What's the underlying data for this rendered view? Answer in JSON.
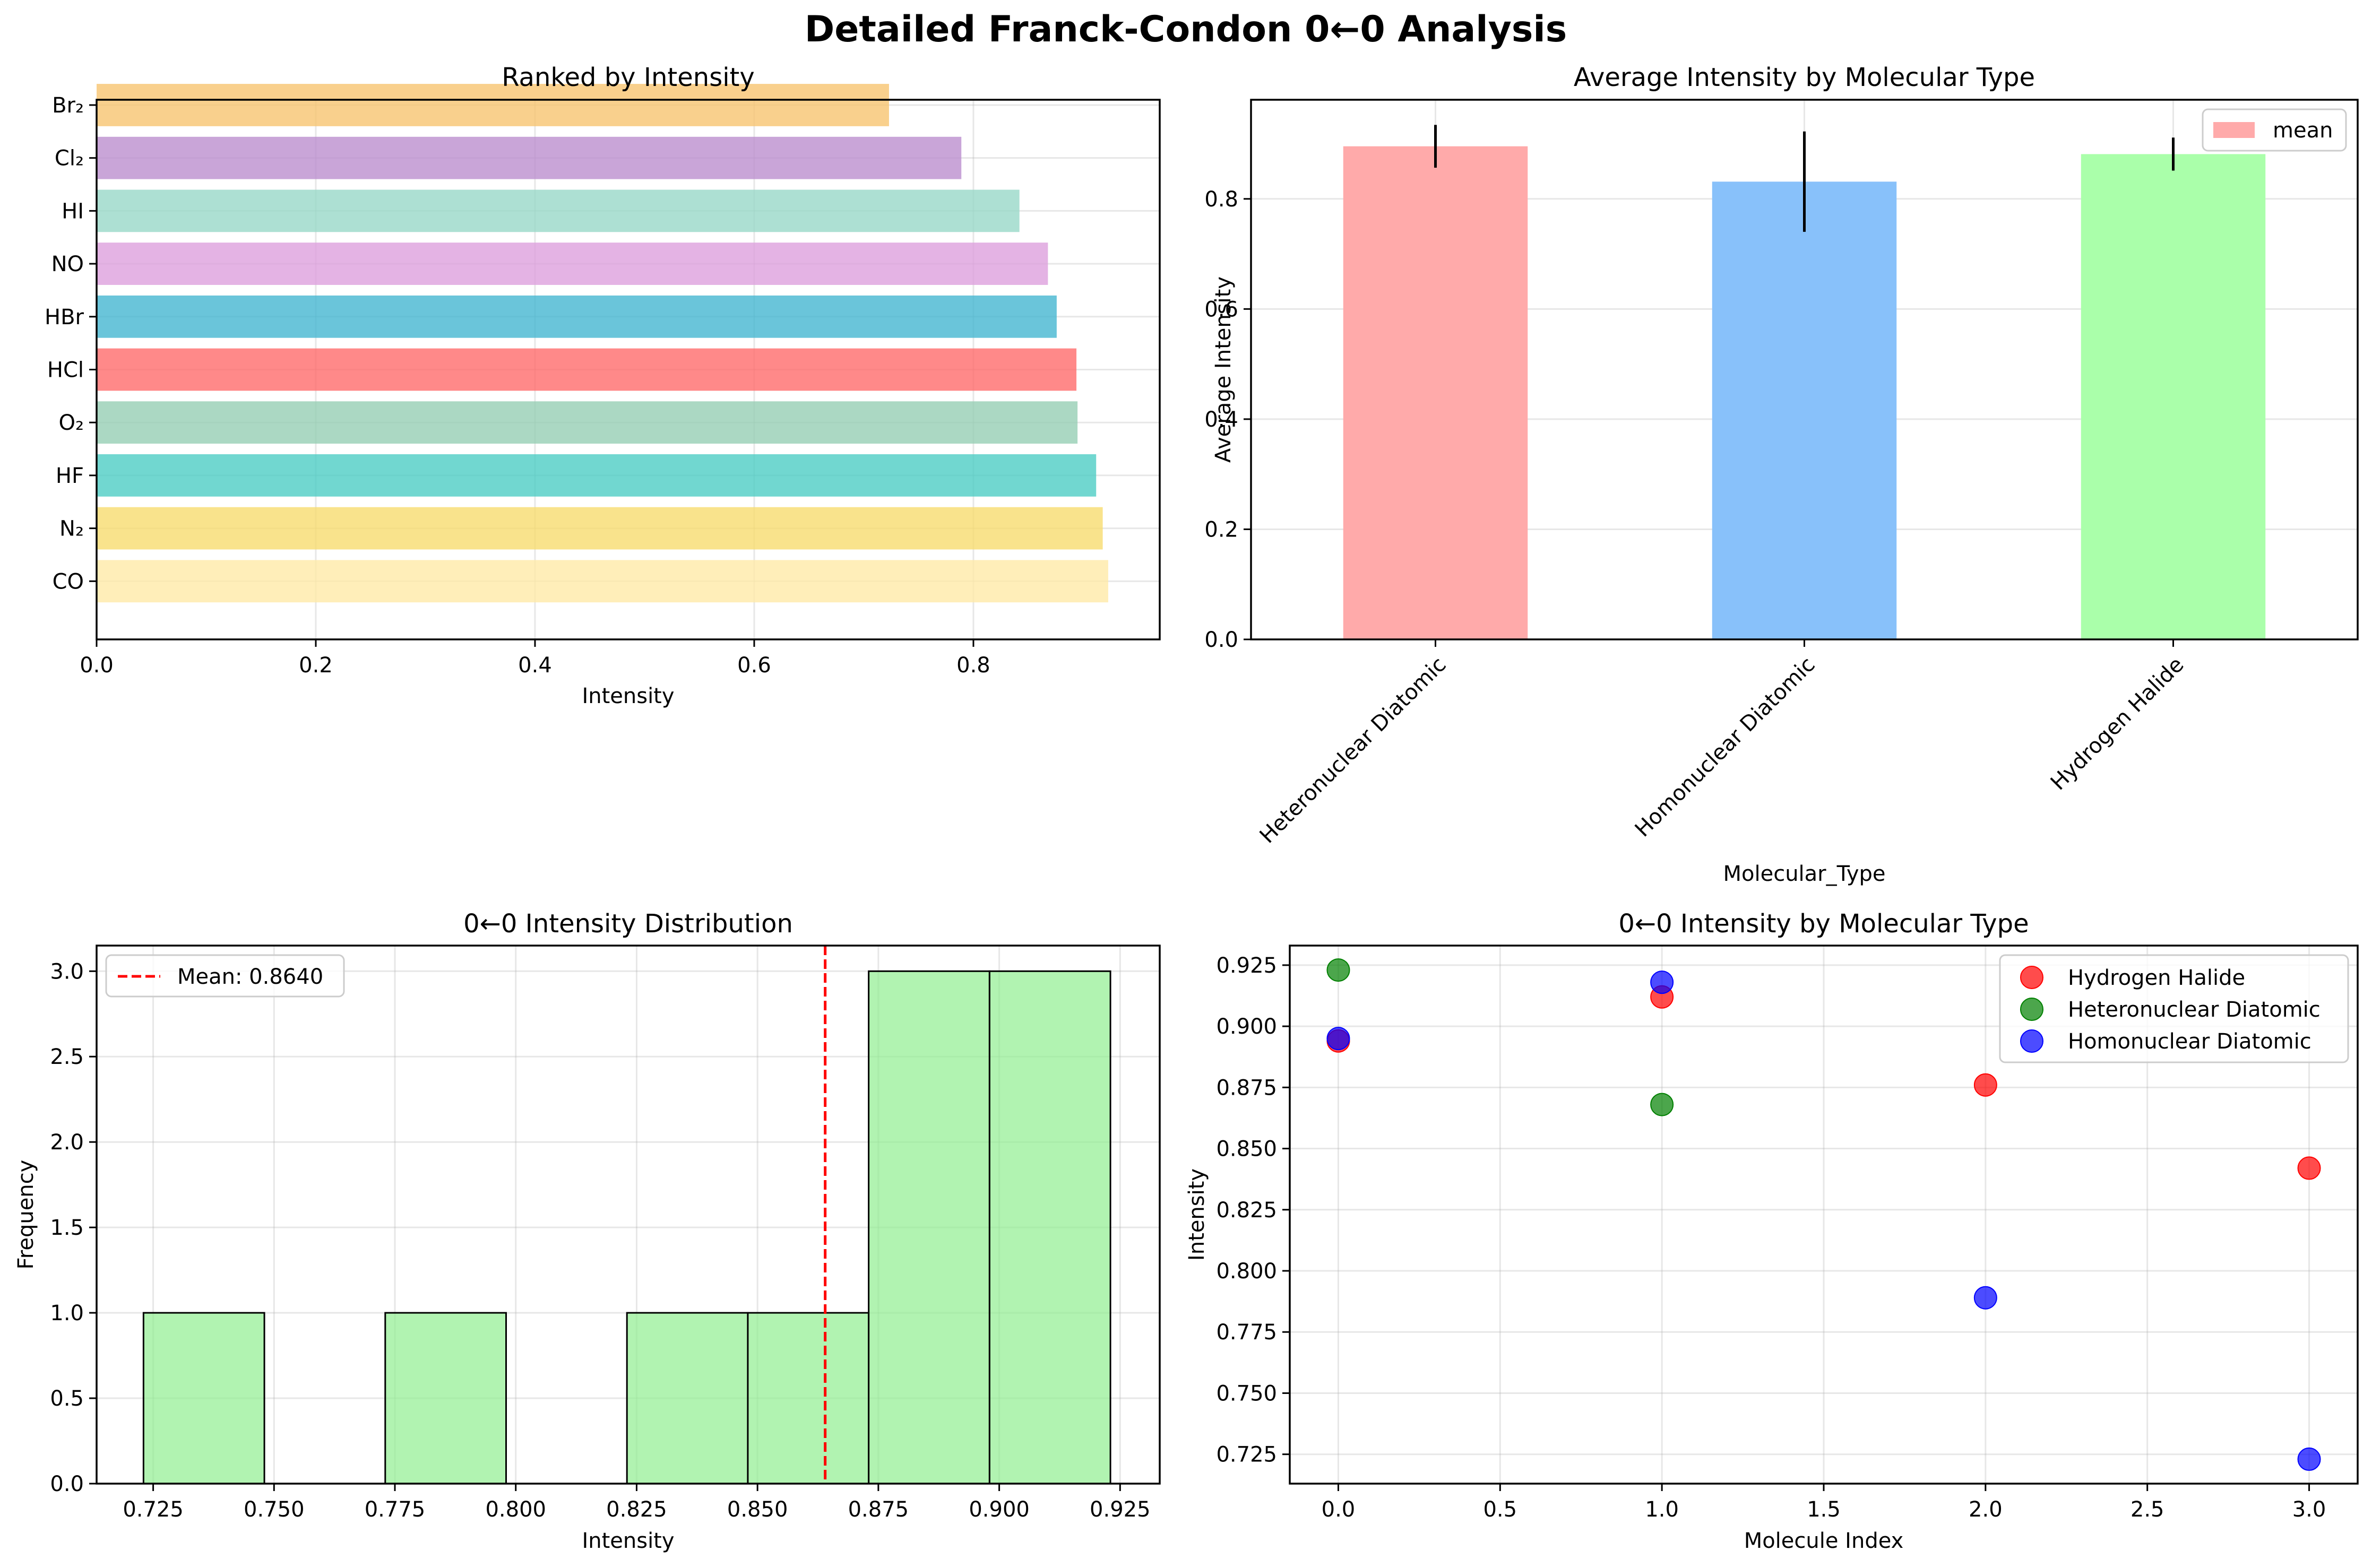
{
  "suptitle": "Detailed Franck-Condon 0←0 Analysis",
  "chart_data": [
    {
      "type": "bar",
      "orientation": "horizontal",
      "title": "Ranked by Intensity",
      "xlabel": "Intensity",
      "ylabel": "",
      "xlim": [
        0,
        0.97
      ],
      "xticks": [
        "0.0",
        "0.2",
        "0.4",
        "0.6",
        "0.8"
      ],
      "grid": true,
      "categories": [
        "CO",
        "N₂",
        "HF",
        "O₂",
        "HCl",
        "HBr",
        "NO",
        "HI",
        "Cl₂",
        "Br₂"
      ],
      "values": [
        0.923,
        0.918,
        0.912,
        0.895,
        0.894,
        0.876,
        0.868,
        0.842,
        0.789,
        0.723
      ],
      "colors": [
        "#FFEAA7",
        "#F7DC6F",
        "#4ECDC4",
        "#96CEB4",
        "#FF6B6B",
        "#45B7D1",
        "#DDA0DD",
        "#98D8C8",
        "#BB8FCE",
        "#F8C471"
      ]
    },
    {
      "type": "bar",
      "title": "Average Intensity by Molecular Type",
      "xlabel": "Molecular_Type",
      "ylabel": "Average Intensity",
      "ylim": [
        0,
        0.98
      ],
      "yticks": [
        "0.0",
        "0.2",
        "0.4",
        "0.6",
        "0.8"
      ],
      "grid": true,
      "legend": "upper right",
      "categories": [
        "Heteronuclear Diatomic",
        "Homonuclear Diatomic",
        "Hydrogen Halide"
      ],
      "series": [
        {
          "name": "mean",
          "values": [
            0.8955,
            0.8313,
            0.8813
          ],
          "errors": [
            0.0389,
            0.0911,
            0.03
          ]
        }
      ],
      "colors": [
        "#FFAAAA",
        "#88C1FA",
        "#AAFFAA"
      ]
    },
    {
      "type": "bar",
      "subtype": "histogram",
      "title": "0←0 Intensity Distribution",
      "xlabel": "Intensity",
      "ylabel": "Frequency",
      "xlim": [
        0.7133,
        0.9332
      ],
      "ylim": [
        0,
        3.15
      ],
      "xticks": [
        "0.725",
        "0.750",
        "0.775",
        "0.800",
        "0.825",
        "0.850",
        "0.875",
        "0.900",
        "0.925"
      ],
      "yticks": [
        "0.0",
        "0.5",
        "1.0",
        "1.5",
        "2.0",
        "2.5",
        "3.0"
      ],
      "grid": true,
      "legend": "upper left",
      "bin_edges": [
        0.723,
        0.748,
        0.773,
        0.798,
        0.823,
        0.848,
        0.873,
        0.898,
        0.923
      ],
      "counts": [
        1,
        0,
        1,
        0,
        1,
        1,
        3,
        3
      ],
      "mean_line": {
        "value": 0.864,
        "label": "Mean: 0.8640"
      },
      "color": "#90EE90"
    },
    {
      "type": "scatter",
      "title": "0←0 Intensity by Molecular Type",
      "xlabel": "Molecule Index",
      "ylabel": "Intensity",
      "xlim": [
        -0.15,
        3.15
      ],
      "ylim": [
        0.713,
        0.933
      ],
      "xticks": [
        "0.0",
        "0.5",
        "1.0",
        "1.5",
        "2.0",
        "2.5",
        "3.0"
      ],
      "yticks": [
        "0.725",
        "0.750",
        "0.775",
        "0.800",
        "0.825",
        "0.850",
        "0.875",
        "0.900",
        "0.925"
      ],
      "grid": true,
      "legend": "upper right",
      "series": [
        {
          "name": "Hydrogen Halide",
          "color": "#FF0000",
          "x": [
            0,
            1,
            2,
            3
          ],
          "y": [
            0.894,
            0.912,
            0.876,
            0.842
          ]
        },
        {
          "name": "Heteronuclear Diatomic",
          "color": "#008000",
          "x": [
            0,
            1
          ],
          "y": [
            0.923,
            0.868
          ]
        },
        {
          "name": "Homonuclear Diatomic",
          "color": "#0000FF",
          "x": [
            0,
            1,
            2,
            3
          ],
          "y": [
            0.895,
            0.918,
            0.789,
            0.723
          ]
        }
      ]
    }
  ]
}
